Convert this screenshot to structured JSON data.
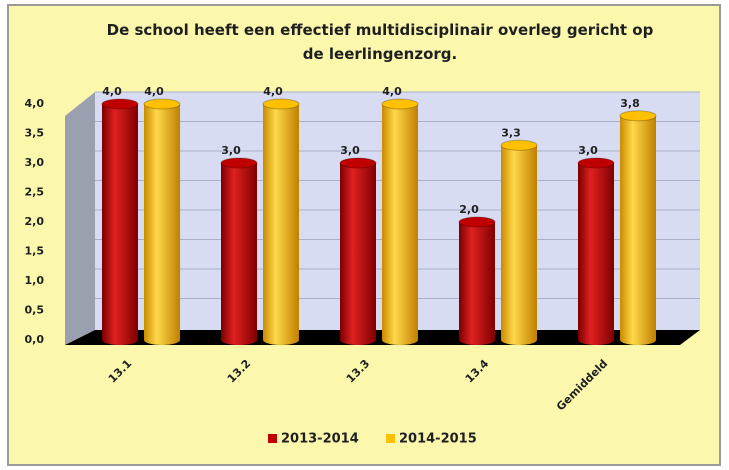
{
  "chart_data": {
    "type": "bar",
    "title": "De school heeft een effectief multidisciplinair overleg gericht op de leerlingenzorg.",
    "categories": [
      "13.1",
      "13.2",
      "13.3",
      "13.4",
      "Gemiddeld"
    ],
    "series": [
      {
        "name": "2013-2014",
        "color": "#c00000",
        "values": [
          4.0,
          3.0,
          3.0,
          2.0,
          3.0
        ],
        "value_labels": [
          "4,0",
          "3,0",
          "3,0",
          "2,0",
          "3,0"
        ]
      },
      {
        "name": "2014-2015",
        "color": "#ffc000",
        "values": [
          4.0,
          4.0,
          4.0,
          3.3,
          3.8
        ],
        "value_labels": [
          "4,0",
          "4,0",
          "4,0",
          "3,3",
          "3,8"
        ]
      }
    ],
    "ylim": [
      0,
      4
    ],
    "yticks": [
      {
        "value": 0,
        "label": "0,0"
      },
      {
        "value": 0.5,
        "label": "0,5"
      },
      {
        "value": 1,
        "label": "1,0"
      },
      {
        "value": 1.5,
        "label": "1,5"
      },
      {
        "value": 2,
        "label": "2,0"
      },
      {
        "value": 2.5,
        "label": "2,5"
      },
      {
        "value": 3,
        "label": "3,0"
      },
      {
        "value": 3.5,
        "label": "3,5"
      },
      {
        "value": 4,
        "label": "4,0"
      }
    ],
    "grid": true
  }
}
